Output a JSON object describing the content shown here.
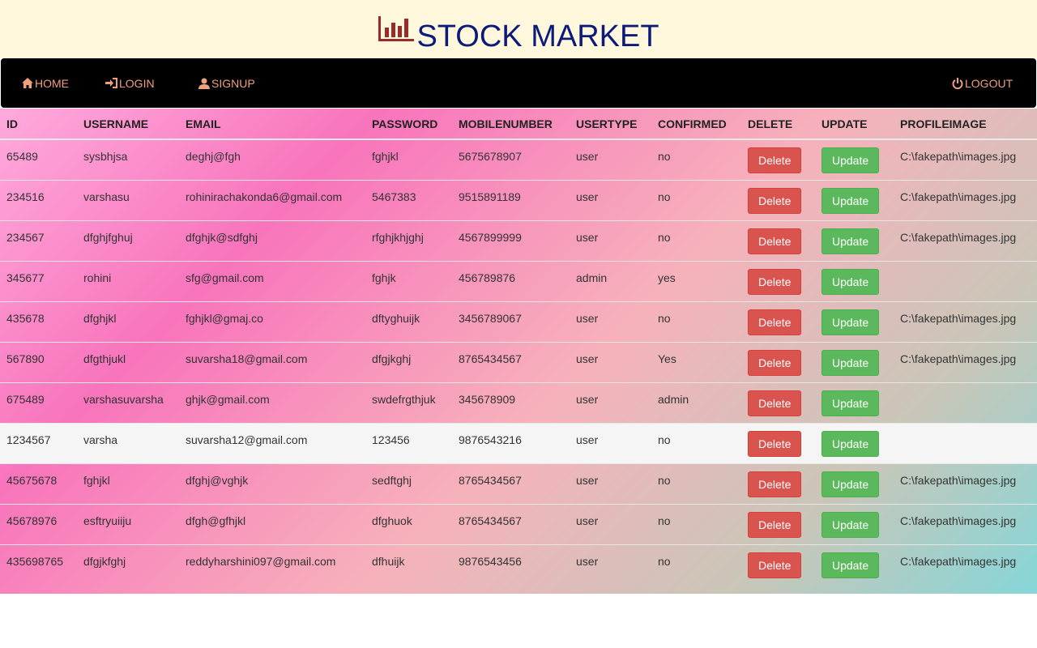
{
  "brand": {
    "title": "STOCK MARKET",
    "icon": "bar-chart-icon",
    "icon_color": "#9b2a2a",
    "title_color": "#0c1b7a"
  },
  "nav": {
    "home": "HOME",
    "login": "LOGIN",
    "signup": "SIGNUP",
    "logout": "LOGOUT"
  },
  "table": {
    "headers": [
      "ID",
      "USERNAME",
      "EMAIL",
      "PASSWORD",
      "MOBILENUMBER",
      "USERTYPE",
      "CONFIRMED",
      "DELETE",
      "UPDATE",
      "PROFILEIMAGE"
    ],
    "delete_label": "Delete",
    "update_label": "Update",
    "rows": [
      {
        "id": "65489",
        "username": "sysbhjsa",
        "email": "deghj@fgh",
        "password": "fghjkl",
        "mobile": "5675678907",
        "usertype": "user",
        "confirmed": "no",
        "delete": "Delete",
        "update": "Update",
        "image": "C:\\fakepath\\images.jpg"
      },
      {
        "id": "234516",
        "username": "varshasu",
        "email": "rohinirachakonda6@gmail.com",
        "password": "5467383",
        "mobile": "9515891189",
        "usertype": "user",
        "confirmed": "no",
        "delete": "Delete",
        "update": "Update",
        "image": "C:\\fakepath\\images.jpg"
      },
      {
        "id": "234567",
        "username": "dfghjfghuj",
        "email": "dfghjk@sdfghj",
        "password": "rfghjkhjghj",
        "mobile": "4567899999",
        "usertype": "user",
        "confirmed": "no",
        "delete": "Delete",
        "update": "Update",
        "image": "C:\\fakepath\\images.jpg"
      },
      {
        "id": "345677",
        "username": "rohini",
        "email": "sfg@gmail.com",
        "password": "fghjk",
        "mobile": "456789876",
        "usertype": "admin",
        "confirmed": "yes",
        "delete": "Delete",
        "update": "Update",
        "image": ""
      },
      {
        "id": "435678",
        "username": "dfghjkl",
        "email": "fghjkl@gmaj.co",
        "password": "dftyghuijk",
        "mobile": "3456789067",
        "usertype": "user",
        "confirmed": "no",
        "delete": "Delete",
        "update": "Update",
        "image": "C:\\fakepath\\images.jpg"
      },
      {
        "id": "567890",
        "username": "dfgthjukl",
        "email": "suvarsha18@gmail.com",
        "password": "dfgjkghj",
        "mobile": "8765434567",
        "usertype": "user",
        "confirmed": "Yes",
        "delete": "Delete",
        "update": "Update",
        "image": "C:\\fakepath\\images.jpg"
      },
      {
        "id": "675489",
        "username": "varshasuvarsha",
        "email": "ghjk@gmail.com",
        "password": "swdefrgthjuk",
        "mobile": "345678909",
        "usertype": "user",
        "confirmed": "admin",
        "delete": "Delete",
        "update": "Update",
        "image": ""
      },
      {
        "id": "1234567",
        "username": "varsha",
        "email": "suvarsha12@gmail.com",
        "password": "123456",
        "mobile": "9876543216",
        "usertype": "user",
        "confirmed": "no",
        "delete": "Delete",
        "update": "Update",
        "image": ""
      },
      {
        "id": "45675678",
        "username": "fghjkl",
        "email": "dfghj@vghjk",
        "password": "sedftghj",
        "mobile": "8765434567",
        "usertype": "user",
        "confirmed": "no",
        "delete": "Delete",
        "update": "Update",
        "image": "C:\\fakepath\\images.jpg"
      },
      {
        "id": "45678976",
        "username": "esftryuiiju",
        "email": "dfgh@gfhjkl",
        "password": "dfghuok",
        "mobile": "8765434567",
        "usertype": "user",
        "confirmed": "no",
        "delete": "Delete",
        "update": "Update",
        "image": "C:\\fakepath\\images.jpg"
      },
      {
        "id": "435698765",
        "username": "dfgjkfghj",
        "email": "reddyharshini097@gmail.com",
        "password": "dfhuijk",
        "mobile": "9876543456",
        "usertype": "user",
        "confirmed": "no",
        "delete": "Delete",
        "update": "Update",
        "image": "C:\\fakepath\\images.jpg"
      }
    ]
  },
  "colors": {
    "delete_button": "#d9534f",
    "update_button": "#5cb85c",
    "nav_text": "#f0a07a",
    "navbar_bg": "#000000",
    "header_bg": "#fff8dc"
  }
}
